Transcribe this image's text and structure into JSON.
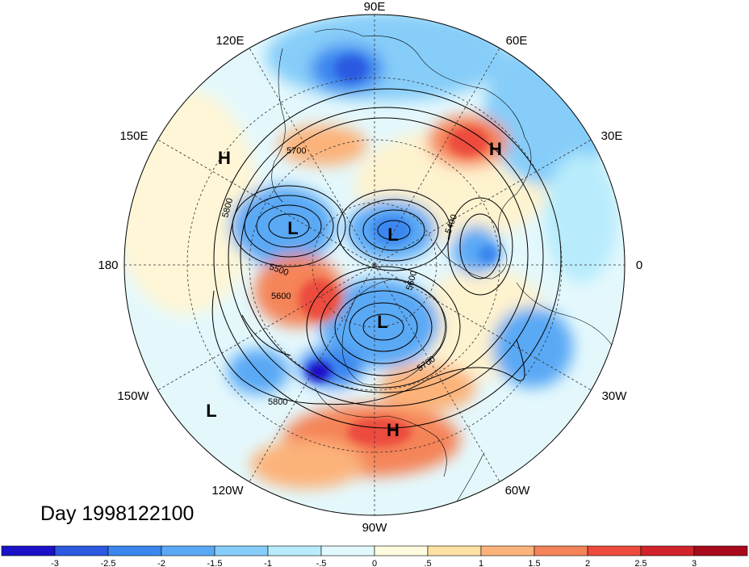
{
  "title": "Day 1998122100",
  "longitude_labels": [
    {
      "id": "lon-90e",
      "text": "90E"
    },
    {
      "id": "lon-60e",
      "text": "60E"
    },
    {
      "id": "lon-30e",
      "text": "30E"
    },
    {
      "id": "lon-0",
      "text": "0"
    },
    {
      "id": "lon-30w",
      "text": "30W"
    },
    {
      "id": "lon-60w",
      "text": "60W"
    },
    {
      "id": "lon-90w",
      "text": "90W"
    },
    {
      "id": "lon-120w",
      "text": "120W"
    },
    {
      "id": "lon-150w",
      "text": "150W"
    },
    {
      "id": "lon-180",
      "text": "180"
    },
    {
      "id": "lon-150e",
      "text": "150E"
    },
    {
      "id": "lon-120e",
      "text": "120E"
    }
  ],
  "pressure_centers": [
    {
      "id": "high-siberia-pacific",
      "text": "H"
    },
    {
      "id": "high-europe-russia",
      "text": "H"
    },
    {
      "id": "low-bering",
      "text": "L"
    },
    {
      "id": "low-arctic",
      "text": "L"
    },
    {
      "id": "low-hudson",
      "text": "L"
    },
    {
      "id": "high-mexico",
      "text": "H"
    },
    {
      "id": "low-pacific",
      "text": "L"
    }
  ],
  "contour_labels": [
    {
      "id": "c5700-a",
      "text": "5700"
    },
    {
      "id": "c5800-a",
      "text": "5800"
    },
    {
      "id": "c5500",
      "text": "5500"
    },
    {
      "id": "c5600",
      "text": "5600"
    },
    {
      "id": "c5400",
      "text": "5400"
    },
    {
      "id": "c5600-b",
      "text": "5600"
    },
    {
      "id": "c5700-b",
      "text": "5700"
    },
    {
      "id": "c5800-b",
      "text": "5800"
    }
  ],
  "colorbar": {
    "colors": [
      "#1b11c8",
      "#2c59e0",
      "#3b86ef",
      "#5aa9f5",
      "#86cdf9",
      "#b8ecfc",
      "#e1f8fd",
      "#fefbdf",
      "#fde2a4",
      "#fcb37a",
      "#f58459",
      "#ec4b3d",
      "#d1232c",
      "#a8091b"
    ],
    "tick_labels": [
      "-3",
      "-2.5",
      "-2",
      "-1.5",
      "-1",
      "-.5",
      "0",
      ".5",
      "1",
      "1.5",
      "2",
      "2.5",
      "3"
    ]
  }
}
